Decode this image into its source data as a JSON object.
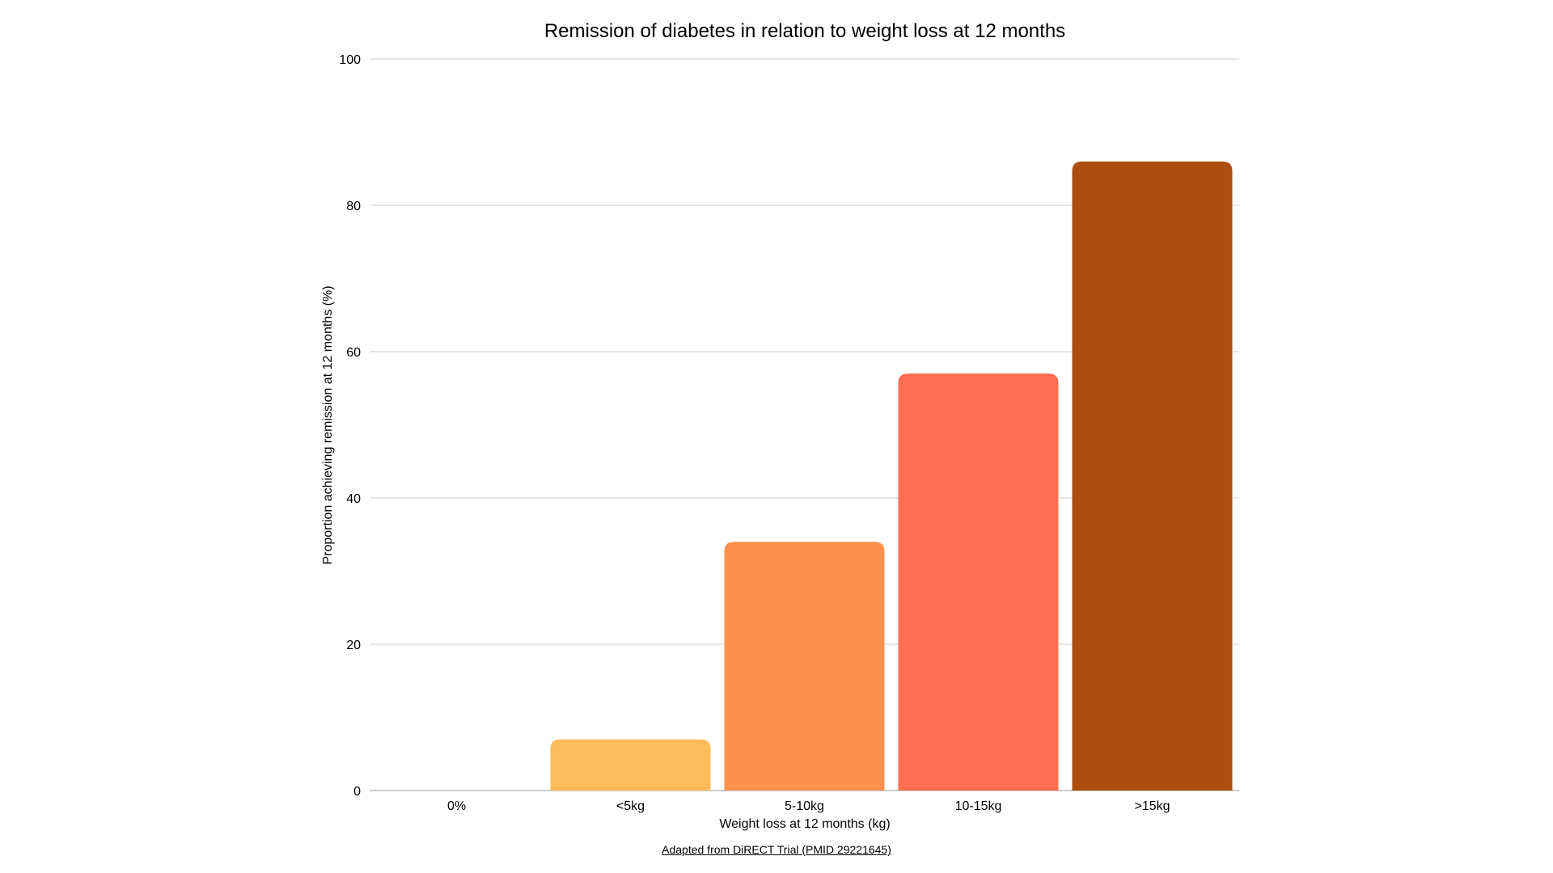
{
  "chart_data": {
    "type": "bar",
    "title": "Remission of diabetes in relation to weight loss at 12 months",
    "xlabel": "Weight loss at 12 months (kg)",
    "ylabel": "Proportion achieving remission at 12 months (%)",
    "categories": [
      "0%",
      "<5kg",
      "5-10kg",
      "10-15kg",
      ">15kg"
    ],
    "values": [
      0,
      7,
      34,
      57,
      86
    ],
    "ylim": [
      0,
      100
    ],
    "yticks": [
      "0",
      "20",
      "40",
      "60",
      "80",
      "100"
    ],
    "grid": true,
    "legend": "none",
    "colors": [
      "#FFC059",
      "#FFBC5A",
      "#FF914D",
      "#FF6E50",
      "#AD4E10"
    ],
    "grid_color": "#CCCCCC",
    "axis_color": "#999999"
  },
  "source": {
    "text": "Adapted from DiRECT Trial (PMID 29221645)"
  }
}
